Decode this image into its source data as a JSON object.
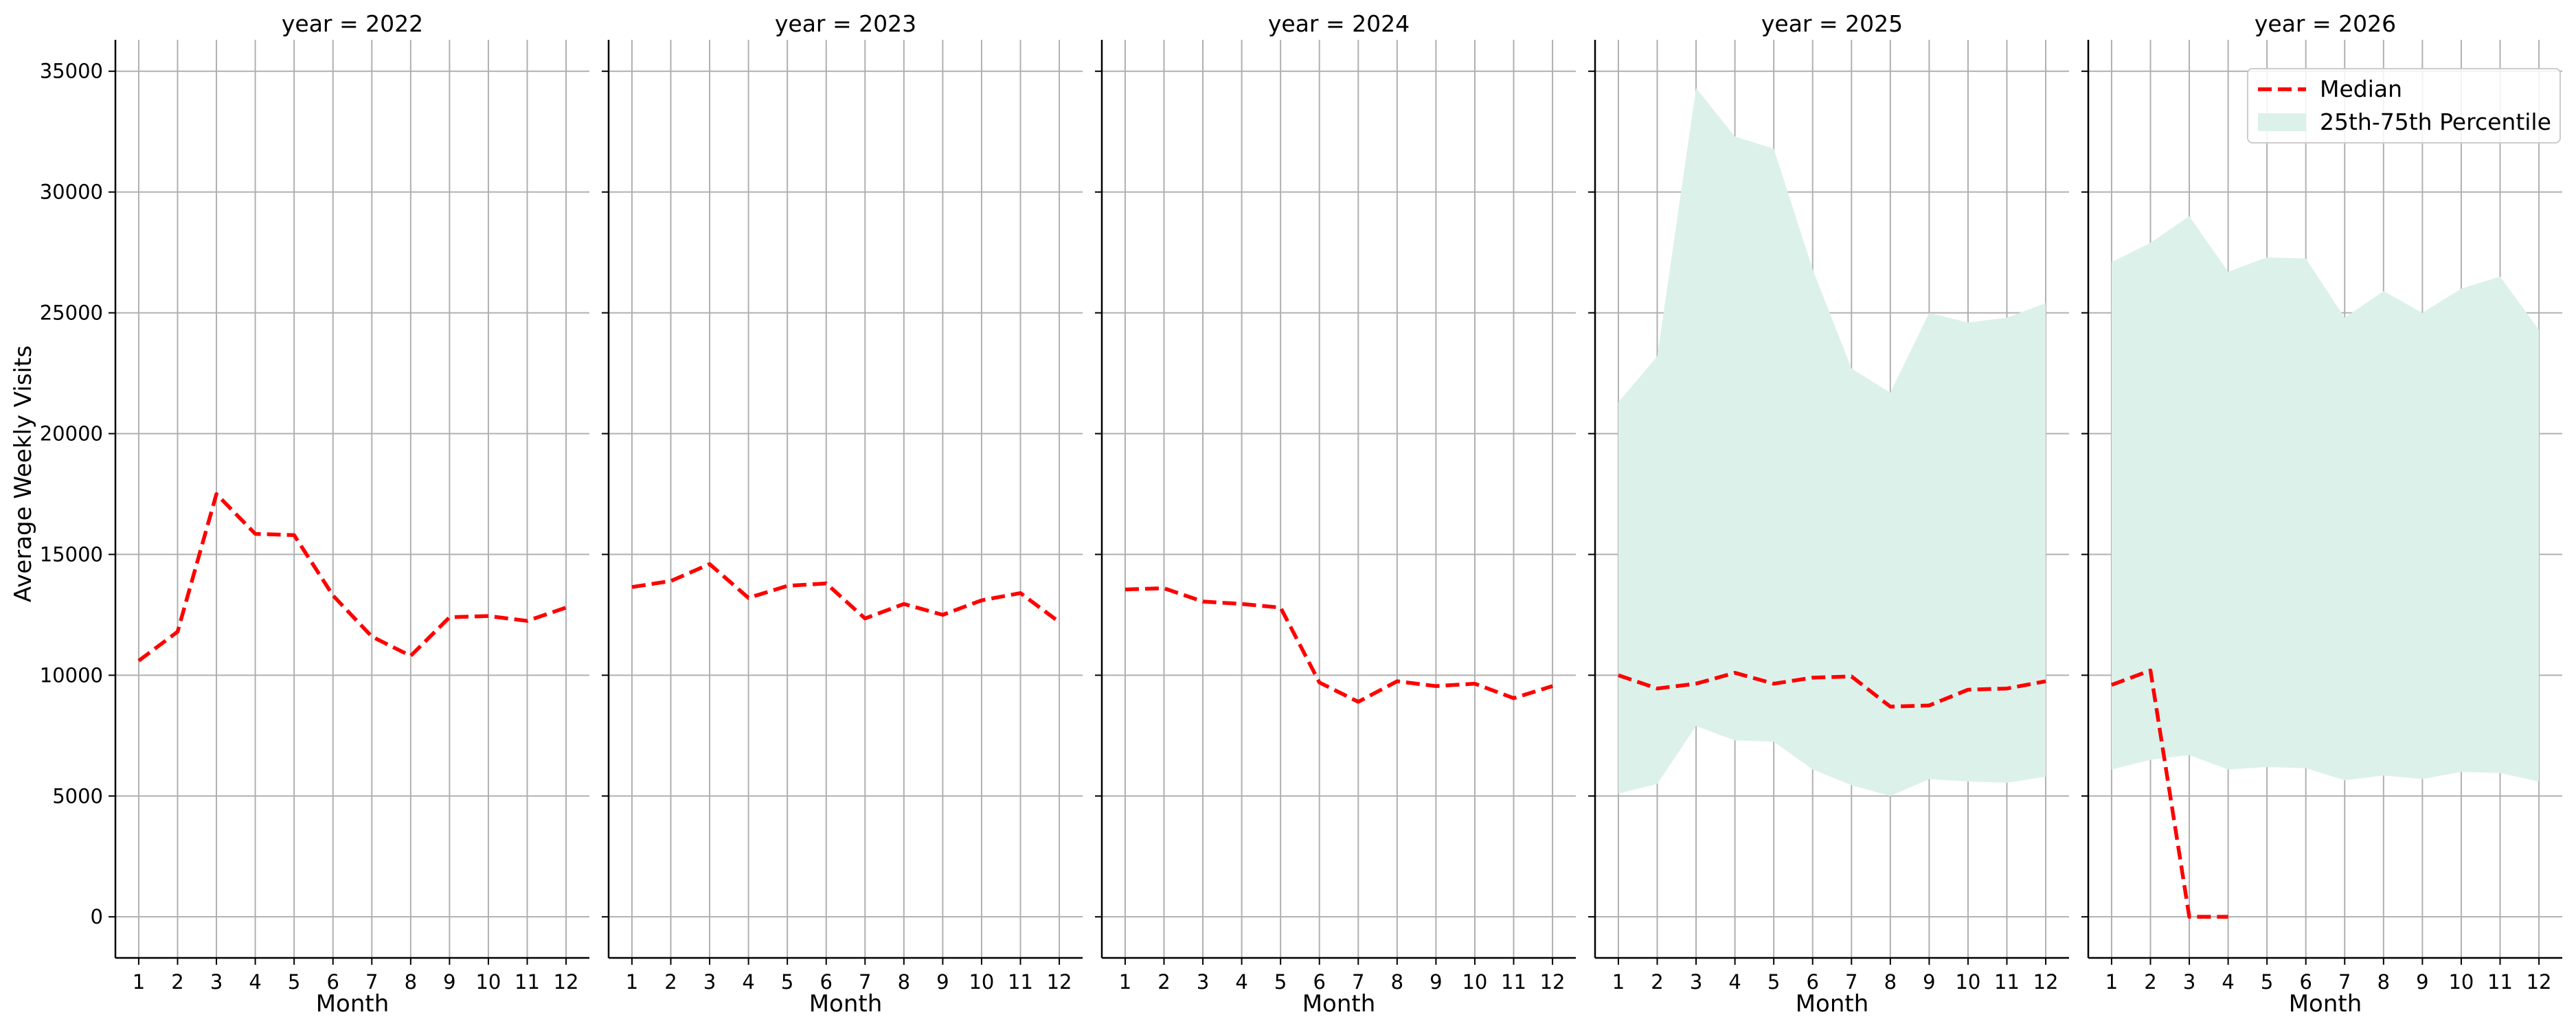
{
  "chart_data": {
    "type": "line",
    "ylabel": "Average Weekly Visits",
    "xlabel": "Month",
    "x": [
      1,
      2,
      3,
      4,
      5,
      6,
      7,
      8,
      9,
      10,
      11,
      12
    ],
    "x_tick_labels": [
      "1",
      "2",
      "3",
      "4",
      "5",
      "6",
      "7",
      "8",
      "9",
      "10",
      "11",
      "12"
    ],
    "ylim": [
      -1700,
      36300
    ],
    "y_ticks": [
      0,
      5000,
      10000,
      15000,
      20000,
      25000,
      30000,
      35000
    ],
    "y_tick_labels": [
      "0",
      "5000",
      "10000",
      "15000",
      "20000",
      "25000",
      "30000",
      "35000"
    ],
    "grid": true,
    "legend_position": "upper right of last panel",
    "legend": [
      {
        "label": "Median",
        "kind": "line"
      },
      {
        "label": "25th-75th Percentile",
        "kind": "band"
      }
    ],
    "colors": {
      "median": "#ff0000",
      "band": "#ddf1eb",
      "grid": "#b0b0b0"
    },
    "panels": [
      {
        "title": "year = 2022",
        "median": [
          10600,
          11800,
          17500,
          15850,
          15800,
          13300,
          11600,
          10800,
          12400,
          12450,
          12250,
          12800
        ],
        "p25": null,
        "p75": null
      },
      {
        "title": "year = 2023",
        "median": [
          13650,
          13900,
          14600,
          13200,
          13700,
          13800,
          12350,
          12950,
          12500,
          13100,
          13400,
          12200
        ],
        "p25": null,
        "p75": null
      },
      {
        "title": "year = 2024",
        "median": [
          13550,
          13600,
          13050,
          12950,
          12800,
          9700,
          8900,
          9750,
          9550,
          9650,
          9050,
          9550
        ],
        "p25": null,
        "p75": null
      },
      {
        "title": "year = 2025",
        "median": [
          10000,
          9450,
          9650,
          10100,
          9650,
          9900,
          9950,
          8700,
          8750,
          9400,
          9450,
          9750
        ],
        "p25": [
          5100,
          5500,
          7900,
          7300,
          7250,
          6100,
          5450,
          5000,
          5700,
          5600,
          5550,
          5800
        ],
        "p75": [
          21300,
          23200,
          34300,
          32300,
          31800,
          26800,
          22700,
          21700,
          25000,
          24600,
          24800,
          25400
        ]
      },
      {
        "title": "year = 2026",
        "median": [
          9600,
          10200,
          0,
          0,
          null,
          null,
          null,
          null,
          null,
          null,
          null,
          null
        ],
        "p25": [
          6100,
          6500,
          6700,
          6100,
          6200,
          6150,
          5650,
          5850,
          5700,
          6000,
          5950,
          5600
        ],
        "p75": [
          27100,
          27900,
          29000,
          26700,
          27300,
          27250,
          24800,
          25900,
          25000,
          26000,
          26500,
          24300
        ]
      }
    ]
  }
}
